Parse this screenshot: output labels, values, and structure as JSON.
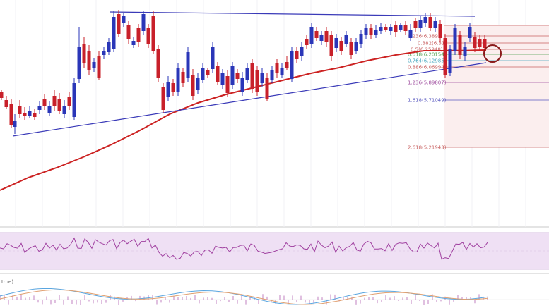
{
  "chart_data": {
    "type": "candlestick",
    "panels": [
      "price",
      "rsi",
      "macd"
    ],
    "up_color": "#2a36b8",
    "down_color": "#c8202a",
    "sma_color": "#cc2222",
    "trendline_color": "#3a3ab8",
    "rsi_color": "#a040a0",
    "rsi_band_color": "#efe0f4",
    "macd_line_color": "#5aa6e0",
    "signal_line_color": "#e0a070",
    "fib_levels": [
      {
        "label": "0.236(6.389",
        "color": "#c86060"
      },
      {
        "label": "0.382(6.317",
        "color": "#c86060"
      },
      {
        "label": "0.5(6.25948)",
        "color": "#c86060"
      },
      {
        "label": "0.618(6.20154)",
        "color": "#50a050"
      },
      {
        "label": "0.764(6.12985)",
        "color": "#4aa8c0"
      },
      {
        "label": "0.886(6.06994)",
        "color": "#c86060"
      },
      {
        "label": "1.236(5.89807)",
        "color": "#a050a0"
      },
      {
        "label": "1.618(5.71049)",
        "color": "#5a5ac0"
      },
      {
        "label": "2.618(5.21943)",
        "color": "#c86060"
      }
    ],
    "macd_panel_label": "true)",
    "marker": "circle-support-marker"
  }
}
